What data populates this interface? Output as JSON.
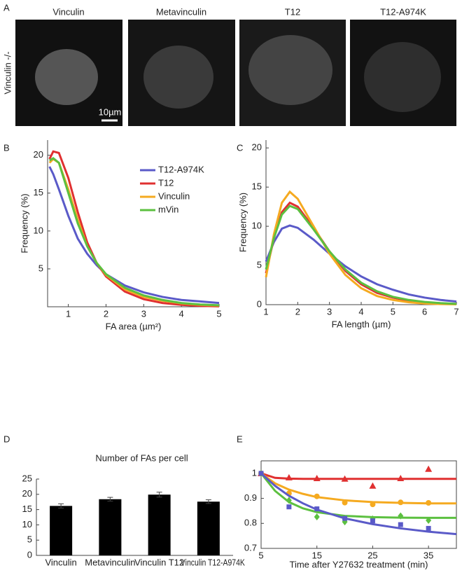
{
  "panels": [
    "A",
    "B",
    "C",
    "D",
    "E"
  ],
  "images": {
    "row_label": "Vinculin -/-",
    "titles": [
      "Vinculin",
      "Metavinculin",
      "T12",
      "T12-A974K"
    ],
    "scale_bar": "10µm"
  },
  "chart_data": [
    {
      "type": "line",
      "xlabel": "FA area (µm²)",
      "ylabel": "Frequency (%)",
      "x": [
        0.5,
        0.6,
        0.75,
        1,
        1.25,
        1.5,
        1.75,
        2,
        2.5,
        3,
        3.5,
        4,
        4.5,
        5
      ],
      "xlim": [
        0.45,
        5
      ],
      "xticks": [
        1,
        2,
        3,
        4,
        5
      ],
      "ylim": [
        0,
        22
      ],
      "yticks": [
        5,
        10,
        15,
        20
      ],
      "legend": "upper right",
      "series": [
        {
          "name": "T12-A974K",
          "color": "#5a5ac8",
          "values": [
            18.5,
            17.5,
            15.5,
            12,
            9,
            7,
            5.5,
            4.3,
            2.8,
            1.9,
            1.3,
            0.9,
            0.7,
            0.5
          ]
        },
        {
          "name": "T12",
          "color": "#e03030",
          "values": [
            19.5,
            20.5,
            20.3,
            17,
            12.5,
            8.5,
            5.8,
            4,
            2,
            1,
            0.5,
            0.25,
            0.12,
            0.06
          ]
        },
        {
          "name": "Vinculin",
          "color": "#f5aa20",
          "values": [
            19,
            19.5,
            19,
            15.5,
            11.5,
            8,
            5.8,
            4.2,
            2.3,
            1.3,
            0.8,
            0.45,
            0.25,
            0.15
          ]
        },
        {
          "name": "mVin",
          "color": "#5cc040",
          "values": [
            19.3,
            19.6,
            19,
            15,
            11,
            8,
            5.8,
            4.3,
            2.5,
            1.5,
            0.9,
            0.5,
            0.3,
            0.2
          ]
        }
      ]
    },
    {
      "type": "line",
      "xlabel": "FA length (µm)",
      "ylabel": "Frequency (%)",
      "x": [
        1,
        1.25,
        1.5,
        1.75,
        2,
        2.5,
        3,
        3.5,
        4,
        4.5,
        5,
        5.5,
        6,
        6.5,
        7
      ],
      "xlim": [
        1,
        7
      ],
      "xticks": [
        1,
        2,
        3,
        4,
        5,
        6,
        7
      ],
      "ylim": [
        0,
        21
      ],
      "yticks": [
        0,
        5,
        10,
        15,
        20
      ],
      "series": [
        {
          "color": "#5a5ac8",
          "values": [
            5.5,
            8,
            9.7,
            10.1,
            9.8,
            8.3,
            6.5,
            4.9,
            3.6,
            2.6,
            1.9,
            1.3,
            0.9,
            0.6,
            0.4
          ]
        },
        {
          "color": "#e03030",
          "values": [
            4,
            8.5,
            11.8,
            13,
            12.5,
            9.8,
            6.8,
            4.3,
            2.6,
            1.5,
            0.9,
            0.5,
            0.3,
            0.15,
            0.1
          ]
        },
        {
          "color": "#f5aa20",
          "values": [
            3.5,
            9,
            13,
            14.4,
            13.5,
            10,
            6.5,
            3.8,
            2.1,
            1.1,
            0.6,
            0.3,
            0.15,
            0.08,
            0.04
          ]
        },
        {
          "color": "#5cc040",
          "values": [
            4.5,
            8.5,
            11.5,
            12.6,
            12.2,
            9.6,
            6.8,
            4.5,
            2.8,
            1.7,
            1,
            0.6,
            0.35,
            0.2,
            0.1
          ]
        }
      ]
    },
    {
      "type": "bar",
      "title": "Number of FAs per cell",
      "color": "#000000",
      "categories": [
        "Vinculin",
        "Metavinculin",
        "Vinculin T12",
        "Vinculin T12-A974K"
      ],
      "values": [
        16.2,
        18.4,
        19.9,
        17.6
      ],
      "errors": [
        0.7,
        0.6,
        0.8,
        0.6
      ],
      "ylim": [
        0,
        25
      ],
      "yticks": [
        0,
        5,
        10,
        15,
        20,
        25
      ]
    },
    {
      "type": "scatter",
      "xlabel": "Time after Y27632 treatment (min)",
      "x": [
        5,
        10,
        15,
        20,
        25,
        30,
        35
      ],
      "fit_x": [
        5,
        7.5,
        10,
        12.5,
        15,
        20,
        25,
        30,
        35,
        40
      ],
      "xlim": [
        5,
        40
      ],
      "xticks": [
        5,
        15,
        25,
        35
      ],
      "ylim": [
        0.7,
        1.05
      ],
      "yticks": [
        0.7,
        0.8,
        0.9,
        1
      ],
      "series": [
        {
          "color": "#e03030",
          "marker": "triangle",
          "values": [
            1,
            0.983,
            0.98,
            0.978,
            0.95,
            0.98,
            1.017
          ],
          "fit": [
            1,
            0.982,
            0.979,
            0.978,
            0.978,
            0.978,
            0.978,
            0.978,
            0.978,
            0.978
          ]
        },
        {
          "color": "#f5aa20",
          "marker": "circle",
          "values": [
            1,
            0.92,
            0.908,
            0.883,
            0.876,
            0.884,
            0.882
          ],
          "fit": [
            1,
            0.96,
            0.935,
            0.918,
            0.905,
            0.892,
            0.885,
            0.882,
            0.88,
            0.88
          ]
        },
        {
          "color": "#5cc040",
          "marker": "diamond",
          "values": [
            1,
            0.892,
            0.826,
            0.806,
            0.818,
            0.83,
            0.812
          ],
          "fit": [
            1,
            0.93,
            0.885,
            0.86,
            0.845,
            0.83,
            0.825,
            0.823,
            0.822,
            0.822
          ]
        },
        {
          "color": "#5a5ac8",
          "marker": "square",
          "values": [
            1,
            0.866,
            0.858,
            0.82,
            0.81,
            0.795,
            0.78
          ],
          "fit": [
            1,
            0.95,
            0.91,
            0.88,
            0.855,
            0.82,
            0.797,
            0.78,
            0.767,
            0.757
          ]
        }
      ]
    }
  ]
}
